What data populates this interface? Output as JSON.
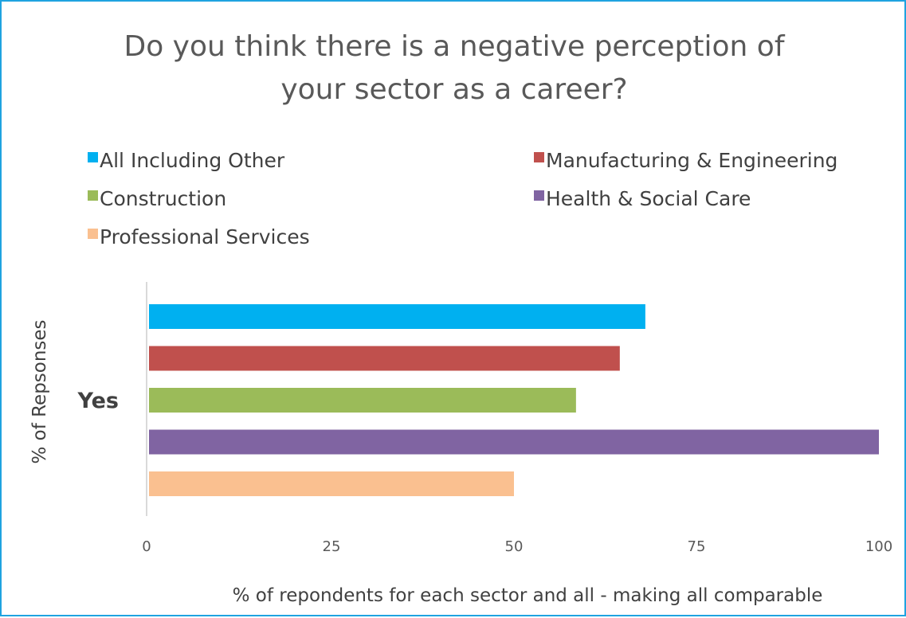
{
  "chart_data": {
    "type": "bar",
    "orientation": "horizontal",
    "title_lines": [
      "Do you think there is a negative perception of",
      "your sector as a career?"
    ],
    "xlabel": "% of repondents for each sector and all - making all comparable",
    "ylabel": "% of Repsonses",
    "categories": [
      "Yes"
    ],
    "xlim": [
      0,
      100
    ],
    "xticks": [
      "0",
      "25",
      "50",
      "75",
      "100"
    ],
    "grid": false,
    "legend_position": "top",
    "series": [
      {
        "name": "All Including Other",
        "values": [
          68
        ],
        "color": "#00b0f0"
      },
      {
        "name": "Manufacturing & Engineering",
        "values": [
          64.5
        ],
        "color": "#c0504d"
      },
      {
        "name": "Construction",
        "values": [
          58.5
        ],
        "color": "#9bbb59"
      },
      {
        "name": "Health & Social Care",
        "values": [
          100
        ],
        "color": "#8064a2"
      },
      {
        "name": "Professional Services",
        "values": [
          50
        ],
        "color": "#fac090"
      }
    ]
  }
}
